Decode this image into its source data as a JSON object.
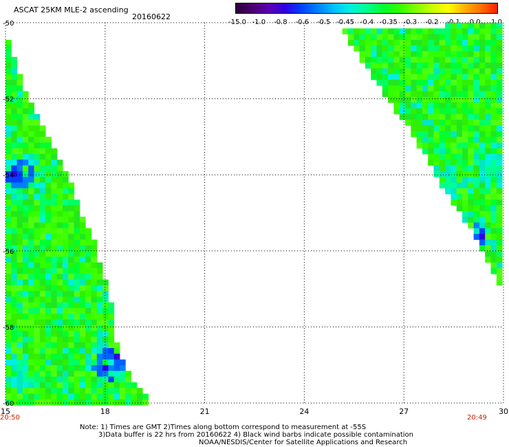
{
  "header": {
    "title": "ASCAT 25KM MLE-2 ascending",
    "date": "20160622"
  },
  "colorbar": {
    "labels": [
      "-15.0",
      "-1.0",
      "-0.8",
      "-0.6",
      "-0.5",
      "-0.45",
      "-0.4",
      "-0.35",
      "-0.3",
      "-0.2",
      "-0.1",
      "0.0",
      "1.0"
    ],
    "colors": [
      "#2a0038",
      "#4a0070",
      "#5a00b0",
      "#3000e0",
      "#0040ff",
      "#0080ff",
      "#00c0ff",
      "#00f0e0",
      "#00ff90",
      "#00ff30",
      "#30ff00",
      "#80ff00",
      "#c8ff00",
      "#ffff00",
      "#ffb000",
      "#ff7000",
      "#ff2000"
    ]
  },
  "notes": {
    "line1": "Note: 1) Times are GMT 2)Times along bottom correspond to measurement at -55S",
    "line2": "3)Data buffer is 22 hrs from 20160622 4) Black wind barbs indicate possible contamination",
    "line3": "NOAA/NESDIS/Center for Satellite Applications and Research"
  },
  "chart_data": {
    "type": "heatmap",
    "variable": "ASCAT 25KM MLE-2 ascending",
    "x_ticks": [
      "15",
      "18",
      "21",
      "24",
      "27",
      "30"
    ],
    "y_ticks": [
      "-50",
      "-52",
      "-54",
      "-56",
      "-58",
      "-60"
    ],
    "xlim": [
      15,
      30
    ],
    "ylim": [
      -60,
      -50
    ],
    "grid": true,
    "bottom_times": [
      {
        "x": 15,
        "text": "20:50",
        "color": "#d02000"
      },
      {
        "x": 29.2,
        "text": "20:49",
        "color": "#d02000"
      }
    ],
    "swaths": [
      {
        "name": "west",
        "edge": [
          [
            15.0,
            -50.3
          ],
          [
            15.3,
            -51.0
          ],
          [
            15.5,
            -51.6
          ],
          [
            15.8,
            -52.2
          ],
          [
            16.2,
            -52.8
          ],
          [
            16.6,
            -53.5
          ],
          [
            17.0,
            -54.3
          ],
          [
            17.3,
            -55.0
          ],
          [
            17.7,
            -55.8
          ],
          [
            17.9,
            -56.5
          ],
          [
            18.2,
            -57.4
          ],
          [
            18.2,
            -58.0
          ],
          [
            18.6,
            -59.0
          ],
          [
            18.9,
            -59.5
          ],
          [
            19.3,
            -59.9
          ],
          [
            19.3,
            -60.0
          ]
        ],
        "dominant_value_range": [
          -0.35,
          -0.2
        ],
        "low_value_patches": [
          {
            "x": 15.5,
            "y": -54.0,
            "value": -0.5,
            "note": "blue patch"
          },
          {
            "x": 15.3,
            "y": -59.2,
            "value": -0.45,
            "note": "blue patch"
          },
          {
            "x": 18.1,
            "y": -59.0,
            "value": -0.6,
            "note": "blue patch"
          }
        ]
      },
      {
        "name": "east",
        "edge": [
          [
            25.1,
            -50.2
          ],
          [
            26.2,
            -51.6
          ],
          [
            27.3,
            -53.0
          ],
          [
            28.3,
            -54.5
          ],
          [
            29.4,
            -56.0
          ],
          [
            30.0,
            -57.2
          ]
        ],
        "dominant_value_range": [
          -0.35,
          -0.2
        ],
        "low_value_patches": [
          {
            "x": 29.7,
            "y": -53.8,
            "value": -0.4,
            "note": "cyan patch"
          },
          {
            "x": 28.2,
            "y": -54.3,
            "value": -0.45,
            "note": "cyan patch"
          },
          {
            "x": 29.0,
            "y": -55.6,
            "value": -0.6,
            "note": "blue cell"
          }
        ]
      }
    ]
  }
}
